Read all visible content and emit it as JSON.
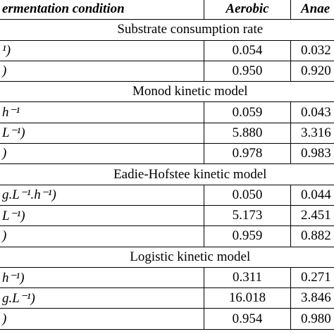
{
  "table": {
    "header": [
      "ermentation condition",
      "Aerobic",
      "Anae"
    ],
    "sections": [
      {
        "title": "Substrate consumption rate",
        "rows": [
          [
            "¹)",
            "0.054",
            "0.032"
          ],
          [
            ")",
            "0.950",
            "0.920"
          ]
        ]
      },
      {
        "title": "Monod kinetic model",
        "rows": [
          [
            "h⁻¹",
            "0.059",
            "0.043"
          ],
          [
            "L⁻¹)",
            "5.880",
            "3.316"
          ],
          [
            ")",
            "0.978",
            "0.983"
          ]
        ]
      },
      {
        "title": "Eadie-Hofstee kinetic model",
        "rows": [
          [
            "g.L⁻¹.h⁻¹)",
            "0.050",
            "0.044"
          ],
          [
            "L⁻¹)",
            "5.173",
            "2.451"
          ],
          [
            ")",
            "0.959",
            "0.882"
          ]
        ]
      },
      {
        "title": "Logistic kinetic model",
        "rows": [
          [
            "h⁻¹)",
            "0.311",
            "0.271"
          ],
          [
            "g.L⁻¹)",
            "16.018",
            "3.846"
          ],
          [
            ")",
            "0.954",
            "0.980"
          ]
        ]
      }
    ]
  }
}
